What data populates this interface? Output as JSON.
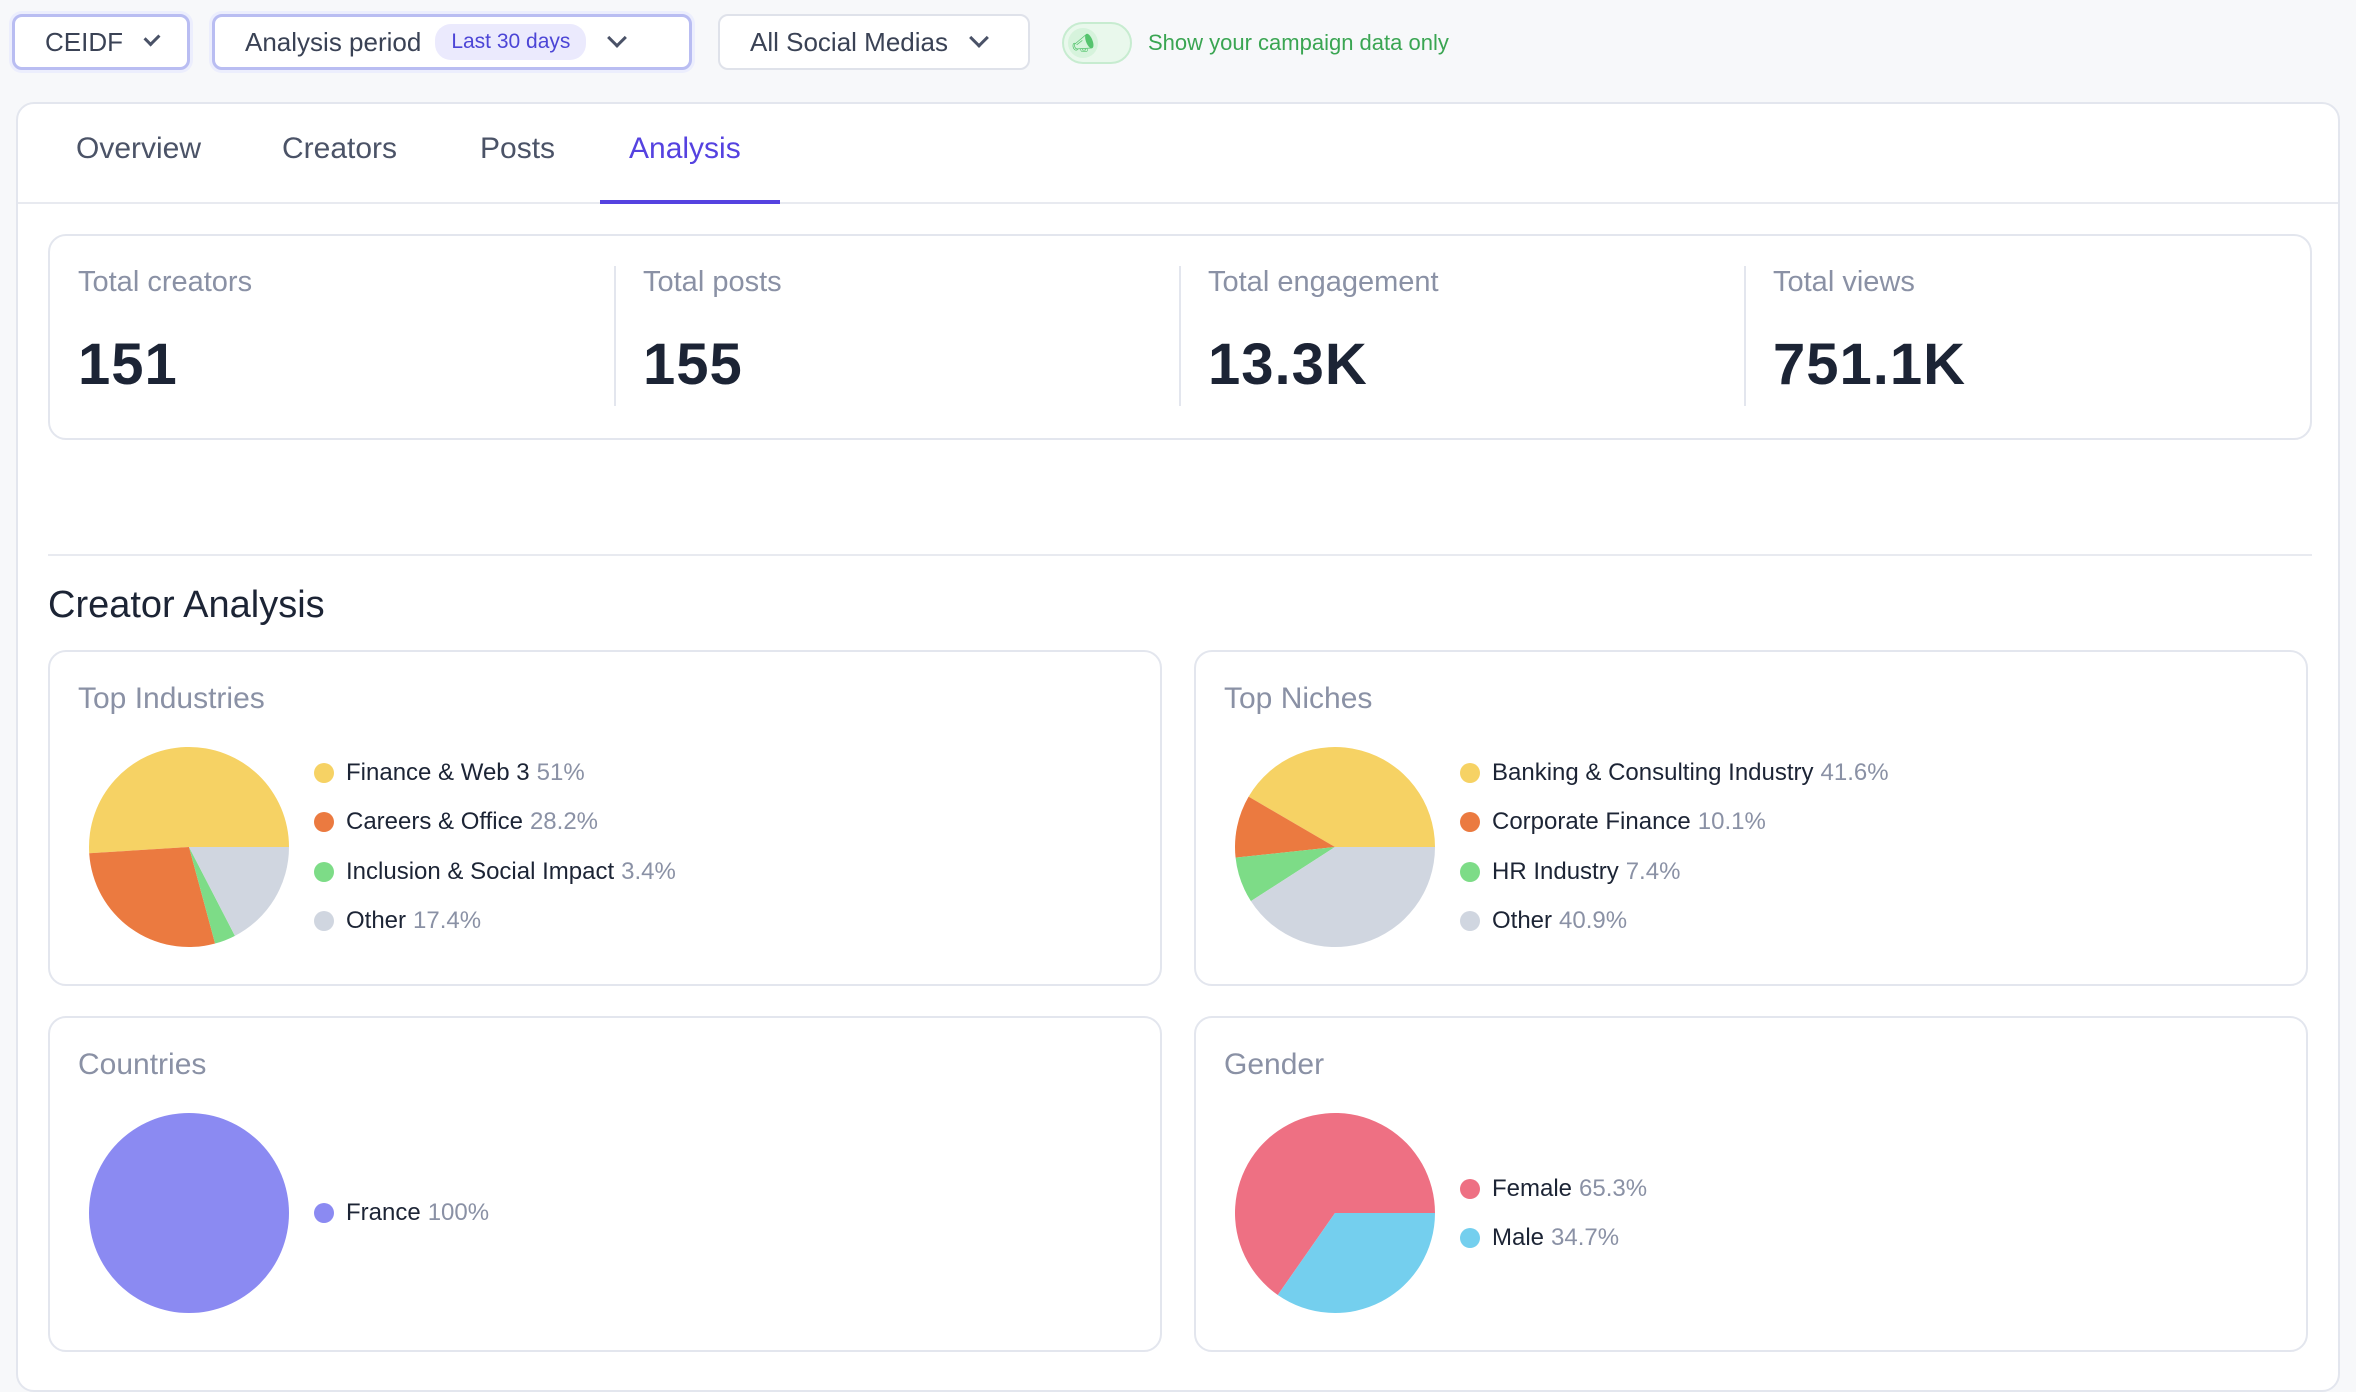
{
  "filters": {
    "org": "CEIDF",
    "period_label": "Analysis period",
    "period_badge": "Last 30 days",
    "social": "All Social Medias",
    "toggle_label": "Show your campaign data only"
  },
  "tabs": [
    {
      "label": "Overview",
      "active": false
    },
    {
      "label": "Creators",
      "active": false
    },
    {
      "label": "Posts",
      "active": false
    },
    {
      "label": "Analysis",
      "active": true
    }
  ],
  "stats": [
    {
      "label": "Total creators",
      "value": "151"
    },
    {
      "label": "Total posts",
      "value": "155"
    },
    {
      "label": "Total engagement",
      "value": "13.3K"
    },
    {
      "label": "Total views",
      "value": "751.1K"
    }
  ],
  "section_title": "Creator Analysis",
  "chart_data": [
    {
      "type": "pie",
      "title": "Top Industries",
      "slices": [
        {
          "label": "Finance & Web 3",
          "value": 51,
          "pct": "51%",
          "color": "#f6d264"
        },
        {
          "label": "Careers & Office",
          "value": 28.2,
          "pct": "28.2%",
          "color": "#eb7a40"
        },
        {
          "label": "Inclusion & Social Impact",
          "value": 3.4,
          "pct": "3.4%",
          "color": "#7ddc87"
        },
        {
          "label": "Other",
          "value": 17.4,
          "pct": "17.4%",
          "color": "#d0d6e0"
        }
      ]
    },
    {
      "type": "pie",
      "title": "Top Niches",
      "slices": [
        {
          "label": "Banking & Consulting Industry",
          "value": 41.6,
          "pct": "41.6%",
          "color": "#f6d264"
        },
        {
          "label": "Corporate Finance",
          "value": 10.1,
          "pct": "10.1%",
          "color": "#eb7a40"
        },
        {
          "label": "HR Industry",
          "value": 7.4,
          "pct": "7.4%",
          "color": "#7ddc87"
        },
        {
          "label": "Other",
          "value": 40.9,
          "pct": "40.9%",
          "color": "#d0d6e0"
        }
      ]
    },
    {
      "type": "pie",
      "title": "Countries",
      "slices": [
        {
          "label": "France",
          "value": 100,
          "pct": "100%",
          "color": "#8b8af2"
        }
      ]
    },
    {
      "type": "pie",
      "title": "Gender",
      "slices": [
        {
          "label": "Female",
          "value": 65.3,
          "pct": "65.3%",
          "color": "#ee7083"
        },
        {
          "label": "Male",
          "value": 34.7,
          "pct": "34.7%",
          "color": "#74cfee"
        }
      ]
    }
  ]
}
